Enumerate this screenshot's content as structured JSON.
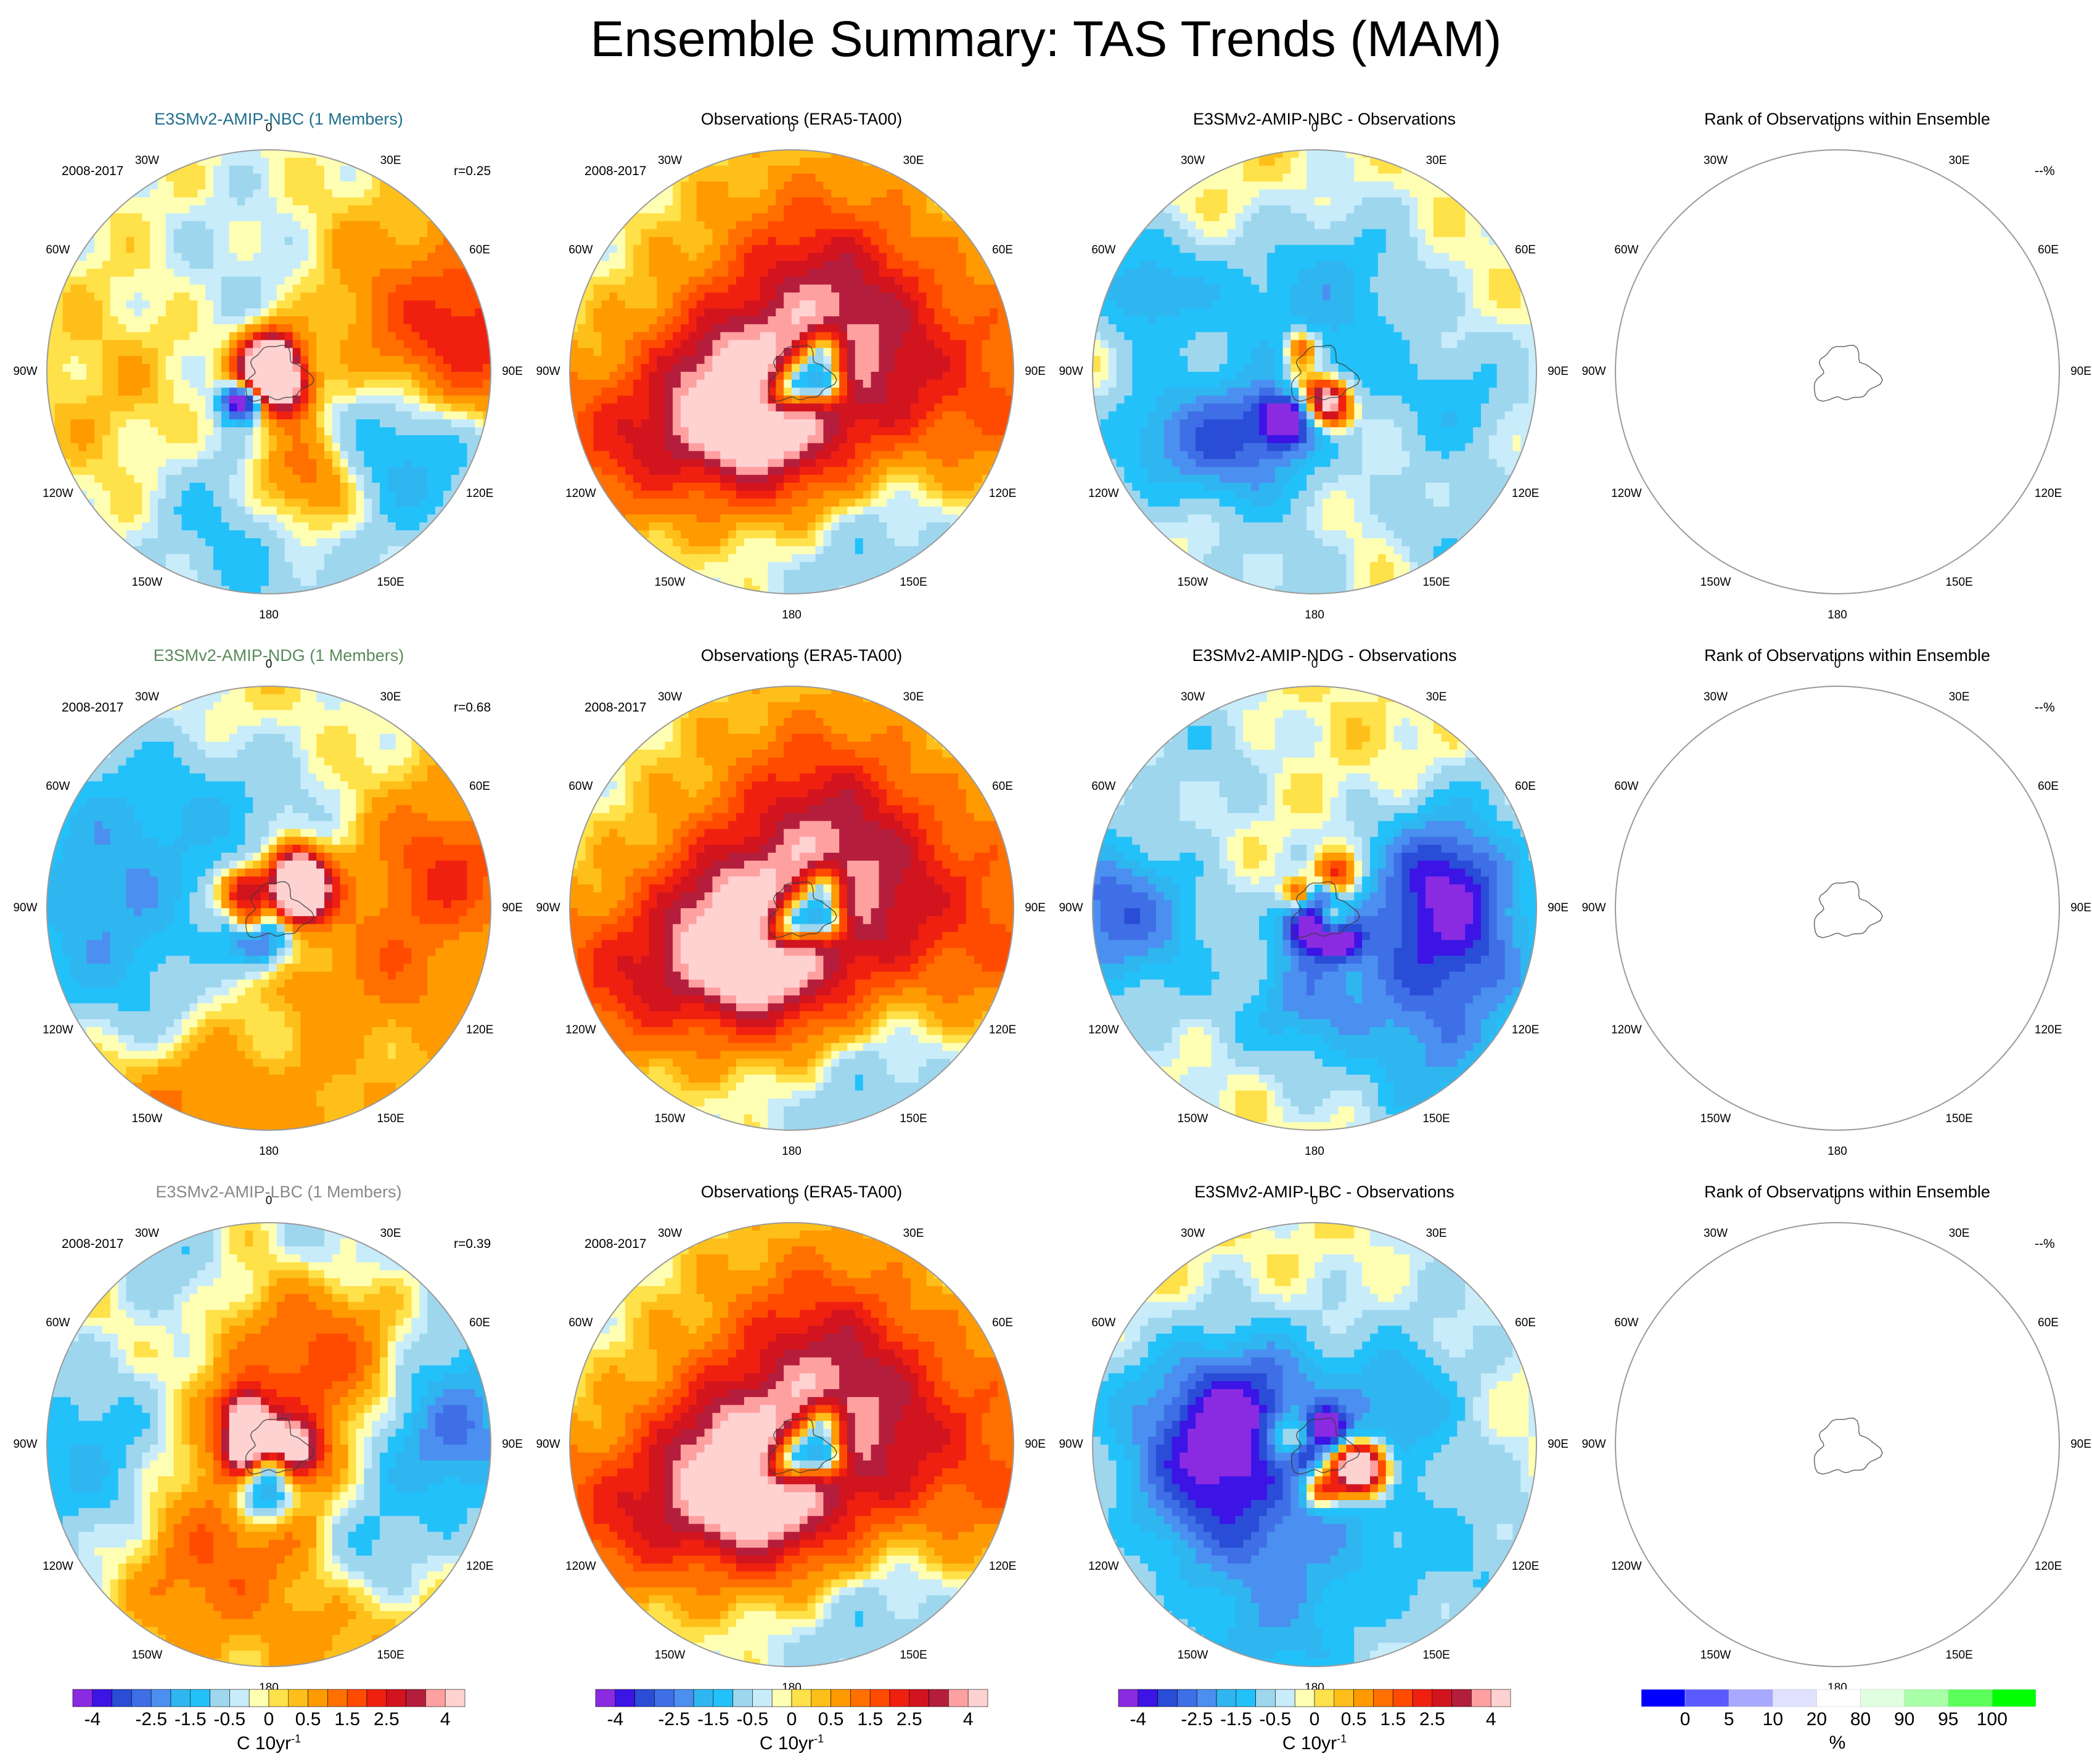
{
  "figure": {
    "title": "Ensemble Summary: TAS Trends (MAM)"
  },
  "longitude_labels": [
    "0",
    "30E",
    "60E",
    "90E",
    "120E",
    "150E",
    "180",
    "150W",
    "120W",
    "90W",
    "60W",
    "30W"
  ],
  "panels": [
    {
      "row": 0,
      "col": 0,
      "kind": "model",
      "title": "E3SMv2-AMIP-NBC (1 Members)",
      "title_color": "#1f6f8b",
      "period": "2008-2017",
      "stat": "r=0.25",
      "seed": 11
    },
    {
      "row": 0,
      "col": 1,
      "kind": "obs",
      "title": "Observations (ERA5-TA00)",
      "title_color": "#000000",
      "period": "2008-2017",
      "stat": "",
      "seed": 101
    },
    {
      "row": 0,
      "col": 2,
      "kind": "diff",
      "title": "E3SMv2-AMIP-NBC - Observations",
      "title_color": "#000000",
      "period": "",
      "stat": "",
      "seed": 201
    },
    {
      "row": 0,
      "col": 3,
      "kind": "rank",
      "title": "Rank of Observations within Ensemble",
      "title_color": "#000000",
      "period": "",
      "stat": "--%",
      "seed": 0
    },
    {
      "row": 1,
      "col": 0,
      "kind": "model",
      "title": "E3SMv2-AMIP-NDG (1 Members)",
      "title_color": "#5a8a5a",
      "period": "2008-2017",
      "stat": "r=0.68",
      "seed": 23
    },
    {
      "row": 1,
      "col": 1,
      "kind": "obs",
      "title": "Observations (ERA5-TA00)",
      "title_color": "#000000",
      "period": "2008-2017",
      "stat": "",
      "seed": 101
    },
    {
      "row": 1,
      "col": 2,
      "kind": "diff",
      "title": "E3SMv2-AMIP-NDG - Observations",
      "title_color": "#000000",
      "period": "",
      "stat": "",
      "seed": 307
    },
    {
      "row": 1,
      "col": 3,
      "kind": "rank",
      "title": "Rank of Observations within Ensemble",
      "title_color": "#000000",
      "period": "",
      "stat": "--%",
      "seed": 0
    },
    {
      "row": 2,
      "col": 0,
      "kind": "model",
      "title": "E3SMv2-AMIP-LBC (1 Members)",
      "title_color": "#888888",
      "period": "2008-2017",
      "stat": "r=0.39",
      "seed": 37
    },
    {
      "row": 2,
      "col": 1,
      "kind": "obs",
      "title": "Observations (ERA5-TA00)",
      "title_color": "#000000",
      "period": "2008-2017",
      "stat": "",
      "seed": 101
    },
    {
      "row": 2,
      "col": 2,
      "kind": "diff",
      "title": "E3SMv2-AMIP-LBC - Observations",
      "title_color": "#000000",
      "period": "",
      "stat": "",
      "seed": 409
    },
    {
      "row": 2,
      "col": 3,
      "kind": "rank",
      "title": "Rank of Observations within Ensemble",
      "title_color": "#000000",
      "period": "",
      "stat": "--%",
      "seed": 0
    }
  ],
  "colorbars": {
    "trend": {
      "unit": "C 10yr",
      "unit_exp": "-1",
      "levels": [
        -4,
        -3.5,
        -3,
        -2.5,
        -2,
        -1.5,
        -1,
        -0.5,
        -0.25,
        0,
        0.25,
        0.5,
        1,
        1.5,
        2,
        2.5,
        3,
        3.5,
        4
      ],
      "tick_labels": [
        "-4",
        "-2.5",
        "-1.5",
        "-0.5",
        "0",
        "0.5",
        "1.5",
        "2.5",
        "4"
      ],
      "tick_levels": [
        -4,
        -2.5,
        -1.5,
        -0.5,
        0,
        0.5,
        1.5,
        2.5,
        4
      ],
      "colors": [
        "#8a2be2",
        "#3c14e6",
        "#2a4dd8",
        "#3f6fe6",
        "#4b90f0",
        "#2fb6f0",
        "#23c1fa",
        "#9ed6ee",
        "#c8ecfa",
        "#ffffb4",
        "#ffe14a",
        "#ffbf1a",
        "#ff9a00",
        "#ff7000",
        "#ff4b00",
        "#f02010",
        "#d2141e",
        "#b41e3c",
        "#ffa0a0",
        "#ffd2d2"
      ]
    },
    "rank": {
      "unit": "%",
      "levels": [
        0,
        5,
        10,
        20,
        80,
        90,
        95,
        100
      ],
      "tick_labels": [
        "0",
        "5",
        "10",
        "20",
        "80",
        "90",
        "95",
        "100"
      ],
      "colors": [
        "#0000ff",
        "#5a5aff",
        "#a8a8ff",
        "#e0e0ff",
        "#ffffff",
        "#e0ffe0",
        "#a8ffa8",
        "#5aff5a",
        "#00ff00"
      ]
    }
  },
  "chart_data": {
    "type": "heatmap",
    "title": "Ensemble Summary: TAS Trends (MAM)",
    "projection": "south polar stereographic",
    "variable": "TAS trend",
    "unit": "C 10yr-1",
    "period": "2008-2017",
    "colorbar_levels": [
      -4,
      -3.5,
      -3,
      -2.5,
      -2,
      -1.5,
      -1,
      -0.5,
      -0.25,
      0,
      0.25,
      0.5,
      1,
      1.5,
      2,
      2.5,
      3,
      3.5,
      4
    ],
    "rank_levels_percent": [
      0,
      5,
      10,
      20,
      80,
      90,
      95,
      100
    ],
    "pattern_correlation": [
      {
        "model": "E3SMv2-AMIP-NBC",
        "members": 1,
        "r": 0.25
      },
      {
        "model": "E3SMv2-AMIP-NDG",
        "members": 1,
        "r": 0.68
      },
      {
        "model": "E3SMv2-AMIP-LBC",
        "members": 1,
        "r": 0.39
      }
    ],
    "rank_of_observations": [
      "--%",
      "--%",
      "--%"
    ]
  }
}
